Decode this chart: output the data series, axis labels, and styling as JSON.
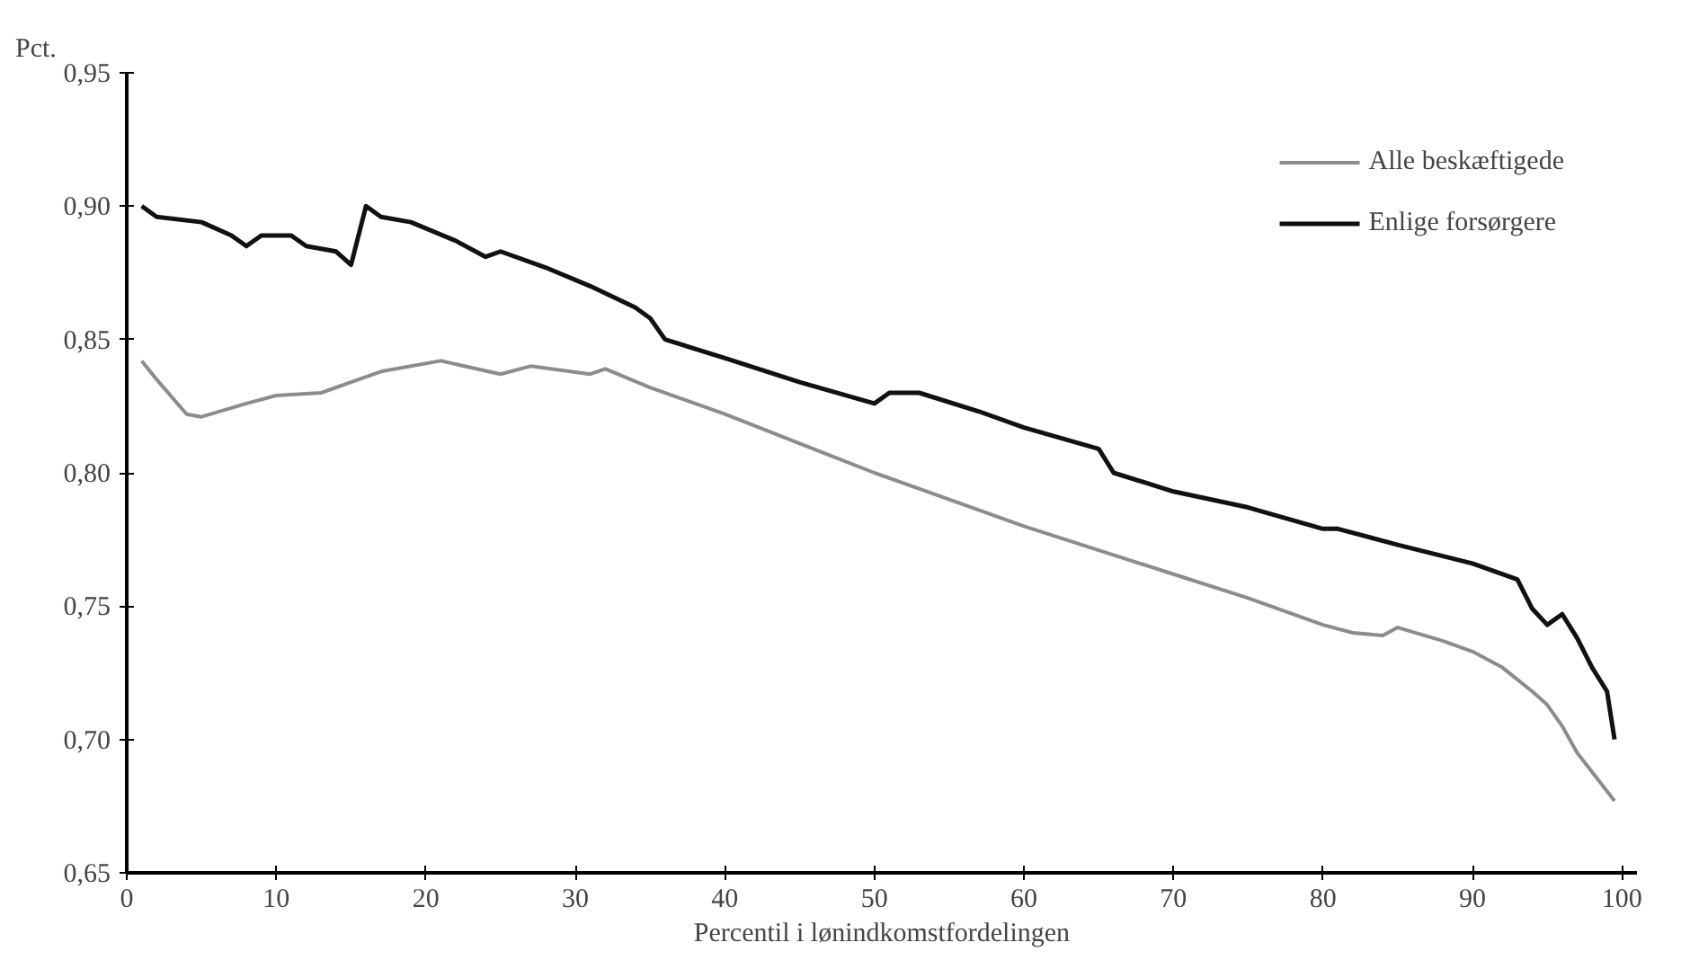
{
  "chart_data": {
    "type": "line",
    "ylabel": "Pct.",
    "xlabel": "Percentil i lønindkomstfordelingen",
    "xlim": [
      0,
      101
    ],
    "xticks": [
      0,
      10,
      20,
      30,
      40,
      50,
      60,
      70,
      80,
      90,
      100
    ],
    "ylim": [
      0.65,
      0.95
    ],
    "yticks": [
      {
        "value": 0.65,
        "label": "0,65"
      },
      {
        "value": 0.7,
        "label": "0,70"
      },
      {
        "value": 0.75,
        "label": "0,75"
      },
      {
        "value": 0.8,
        "label": "0,80"
      },
      {
        "value": 0.85,
        "label": "0,85"
      },
      {
        "value": 0.9,
        "label": "0,90"
      },
      {
        "value": 0.95,
        "label": "0,95"
      }
    ],
    "grid": false,
    "legend": "top right",
    "marker": "none",
    "line_style": "solid",
    "series": [
      {
        "name": "Alle beskæftigede",
        "color": "#8c8c8c",
        "x": [
          1,
          2,
          4,
          5,
          8,
          10,
          13,
          15,
          17,
          21,
          25,
          27,
          31,
          32,
          35,
          40,
          45,
          50,
          55,
          60,
          65,
          70,
          75,
          80,
          82,
          84,
          85,
          88,
          90,
          92,
          94,
          95,
          96,
          97,
          99.5
        ],
        "values": [
          0.842,
          0.835,
          0.822,
          0.821,
          0.826,
          0.829,
          0.83,
          0.834,
          0.838,
          0.842,
          0.837,
          0.84,
          0.837,
          0.839,
          0.832,
          0.822,
          0.811,
          0.8,
          0.79,
          0.78,
          0.771,
          0.762,
          0.753,
          0.743,
          0.74,
          0.739,
          0.742,
          0.737,
          0.733,
          0.727,
          0.718,
          0.713,
          0.705,
          0.695,
          0.677
        ]
      },
      {
        "name": "Enlige forsørgere",
        "color": "#111111",
        "x": [
          1,
          2,
          5,
          7,
          8,
          9,
          11,
          12,
          14,
          15,
          16,
          17,
          19,
          22,
          24,
          25,
          28,
          31,
          34,
          35,
          36,
          40,
          45,
          50,
          51,
          53,
          57,
          60,
          65,
          66,
          70,
          75,
          80,
          81,
          85,
          90,
          93,
          94,
          95,
          96,
          97,
          98,
          99,
          99.5
        ],
        "values": [
          0.9,
          0.896,
          0.894,
          0.889,
          0.885,
          0.889,
          0.889,
          0.885,
          0.883,
          0.878,
          0.9,
          0.896,
          0.894,
          0.887,
          0.881,
          0.883,
          0.877,
          0.87,
          0.862,
          0.858,
          0.85,
          0.843,
          0.834,
          0.826,
          0.83,
          0.83,
          0.823,
          0.817,
          0.809,
          0.8,
          0.793,
          0.787,
          0.779,
          0.779,
          0.773,
          0.766,
          0.76,
          0.749,
          0.743,
          0.747,
          0.738,
          0.727,
          0.718,
          0.7
        ]
      }
    ]
  }
}
